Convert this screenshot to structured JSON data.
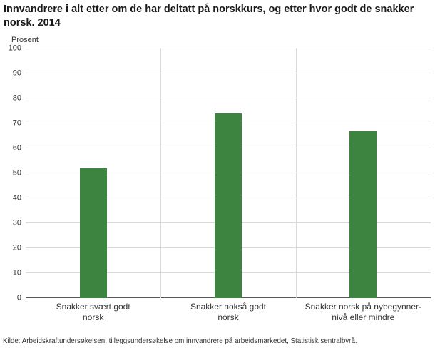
{
  "title": "Innvandrere i alt etter om de har deltatt på norskkurs, og etter hvor godt de snakker norsk. 2014",
  "y_axis_unit_label": "Prosent",
  "source": "Kilde: Arbeidskraftundersøkelsen, tilleggsundersøkelse om innvandrere på arbeidsmarkedet, Statistisk sentralbyrå.",
  "chart_data": {
    "type": "bar",
    "title": "Innvandrere i alt etter om de har deltatt på norskkurs, og etter hvor godt de snakker norsk. 2014",
    "categories": [
      "Snakker svært godt\nnorsk",
      "Snakker nokså godt\nnorsk",
      "Snakker norsk på nybegynner-\nnivå eller mindre"
    ],
    "values": [
      52,
      74,
      67
    ],
    "xlabel": "",
    "ylabel": "Prosent",
    "ylim": [
      0,
      100
    ],
    "ytick_step": 10,
    "grid": true,
    "legend": "none",
    "bar_color": "#3e8441",
    "gridline_color": "#d9d9d9",
    "axis_color": "#595959"
  }
}
